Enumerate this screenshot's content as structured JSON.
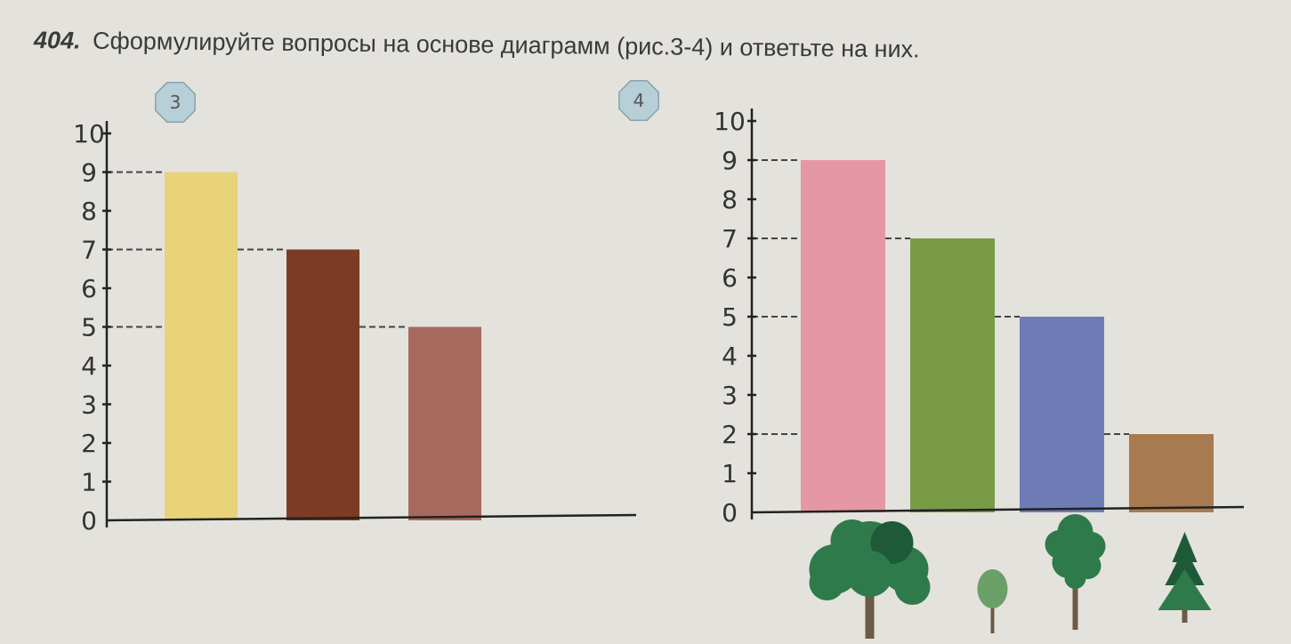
{
  "exercise": {
    "number": "404.",
    "text": "Сформулируйте вопросы на основе диаграмм (рис.3-4)  и ответьте на них."
  },
  "chart_data": [
    {
      "type": "bar",
      "figure_label": "3",
      "ylim": [
        0,
        10
      ],
      "y_ticks": [
        "0",
        "1",
        "2",
        "3",
        "4",
        "5",
        "6",
        "7",
        "8",
        "9",
        "10"
      ],
      "categories": [
        "",
        "",
        ""
      ],
      "values": [
        9,
        7,
        5
      ],
      "colors": [
        "#e8d27a",
        "#7b3b24",
        "#a66a5e"
      ],
      "guide_lines": [
        9,
        7,
        5
      ]
    },
    {
      "type": "bar",
      "figure_label": "4",
      "ylim": [
        0,
        10
      ],
      "y_ticks": [
        "0",
        "1",
        "2",
        "3",
        "4",
        "5",
        "6",
        "7",
        "8",
        "9",
        "10"
      ],
      "categories": [
        "",
        "",
        "",
        ""
      ],
      "category_icons": [
        "oak-tree-icon",
        "small-tree-icon",
        "pine-tree-icon",
        "fir-tree-icon"
      ],
      "values": [
        9,
        7,
        5,
        2
      ],
      "colors": [
        "#e597a6",
        "#7a9b46",
        "#6f7db6",
        "#a87a50"
      ],
      "guide_lines": [
        9,
        7,
        5,
        2
      ]
    }
  ]
}
